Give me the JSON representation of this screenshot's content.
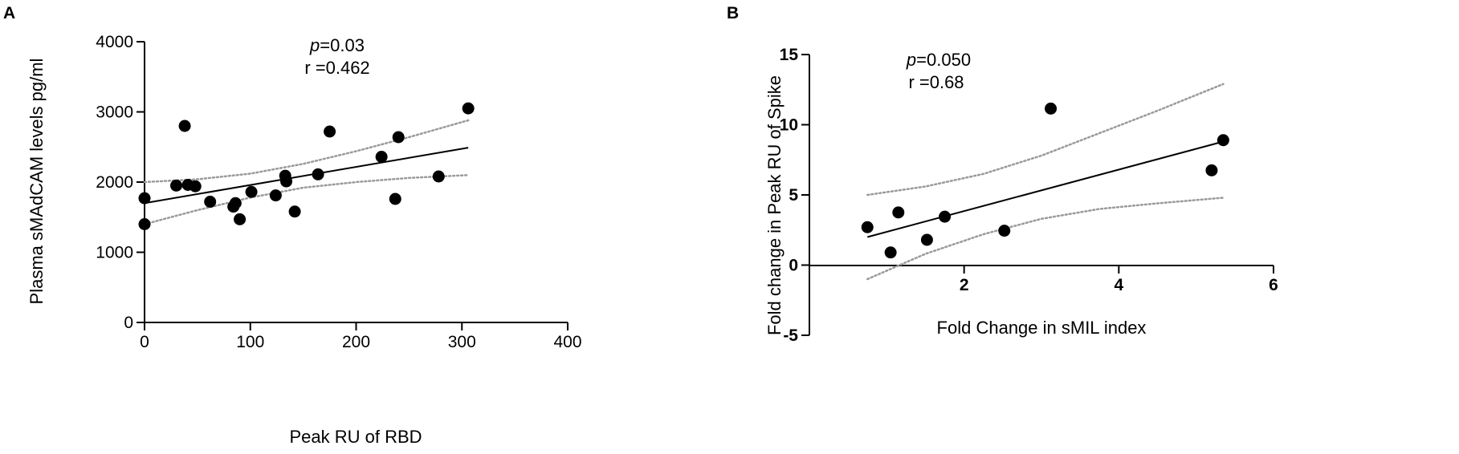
{
  "chart_data": [
    {
      "type": "scatter",
      "panel_label": "A",
      "title": "",
      "xlabel": "Peak RU of RBD",
      "ylabel": "Plasma sMAdCAM levels pg/ml",
      "xlim": [
        0,
        400
      ],
      "ylim": [
        0,
        4000
      ],
      "xticks": [
        0,
        100,
        200,
        300,
        400
      ],
      "yticks": [
        0,
        1000,
        2000,
        3000,
        4000
      ],
      "xtick_labels": [
        "0",
        "100",
        "200",
        "300",
        "400"
      ],
      "ytick_labels": [
        "0",
        "1000",
        "2000",
        "3000",
        "4000"
      ],
      "grid": false,
      "annotation": {
        "p_symbol": "p",
        "p_value": "=0.03",
        "r_text": "r =0.462"
      },
      "fit_line": {
        "x": [
          0,
          306
        ],
        "y": [
          1700,
          2490
        ]
      },
      "ci_upper": {
        "x": [
          0,
          50,
          100,
          150,
          200,
          250,
          306
        ],
        "y": [
          2000,
          2040,
          2120,
          2260,
          2440,
          2640,
          2880
        ]
      },
      "ci_lower": {
        "x": [
          0,
          50,
          100,
          150,
          200,
          250,
          306
        ],
        "y": [
          1400,
          1600,
          1780,
          1920,
          2000,
          2060,
          2100
        ]
      },
      "points": {
        "x": [
          0,
          0,
          30,
          38,
          41,
          48,
          62,
          84,
          86,
          90,
          101,
          124,
          133,
          134,
          142,
          164,
          175,
          224,
          237,
          240,
          278,
          306
        ],
        "y": [
          1770,
          1400,
          1950,
          2800,
          1960,
          1940,
          1720,
          1650,
          1700,
          1470,
          1860,
          1810,
          2090,
          2010,
          1580,
          2110,
          2720,
          2360,
          1760,
          2640,
          2080,
          3050
        ]
      },
      "colors": {
        "points": "#000000",
        "fit": "#000000",
        "ci": "#9a9a9a"
      }
    },
    {
      "type": "scatter",
      "panel_label": "B",
      "title": "",
      "xlabel": "Fold Change in sMIL index",
      "ylabel": "Fold change in Peak RU of Spike",
      "xlim": [
        0,
        6
      ],
      "ylim": [
        -5,
        15
      ],
      "xticks": [
        2,
        4,
        6
      ],
      "yticks": [
        -5,
        0,
        5,
        10,
        15
      ],
      "xtick_labels": [
        "2",
        "4",
        "6"
      ],
      "ytick_labels": [
        "-5",
        "0",
        "5",
        "10",
        "15"
      ],
      "grid": false,
      "annotation": {
        "p_symbol": "p",
        "p_value": "=0.050",
        "r_text": "r =0.68"
      },
      "fit_line": {
        "x": [
          0.75,
          5.35
        ],
        "y": [
          2.0,
          8.8
        ]
      },
      "ci_upper": {
        "x": [
          0.75,
          1.5,
          2.25,
          3.0,
          3.75,
          4.5,
          5.35
        ],
        "y": [
          5.0,
          5.6,
          6.5,
          7.8,
          9.4,
          11.0,
          12.9
        ]
      },
      "ci_lower": {
        "x": [
          0.75,
          1.5,
          2.25,
          3.0,
          3.75,
          4.5,
          5.35
        ],
        "y": [
          -1.0,
          0.8,
          2.2,
          3.3,
          4.0,
          4.4,
          4.8
        ]
      },
      "points": {
        "x": [
          0.75,
          1.05,
          1.15,
          1.52,
          1.75,
          2.52,
          3.12,
          5.2,
          5.35
        ],
        "y": [
          2.7,
          0.9,
          3.75,
          1.8,
          3.45,
          2.45,
          11.15,
          6.75,
          8.9
        ]
      },
      "colors": {
        "points": "#000000",
        "fit": "#000000",
        "ci": "#9a9a9a"
      }
    }
  ]
}
